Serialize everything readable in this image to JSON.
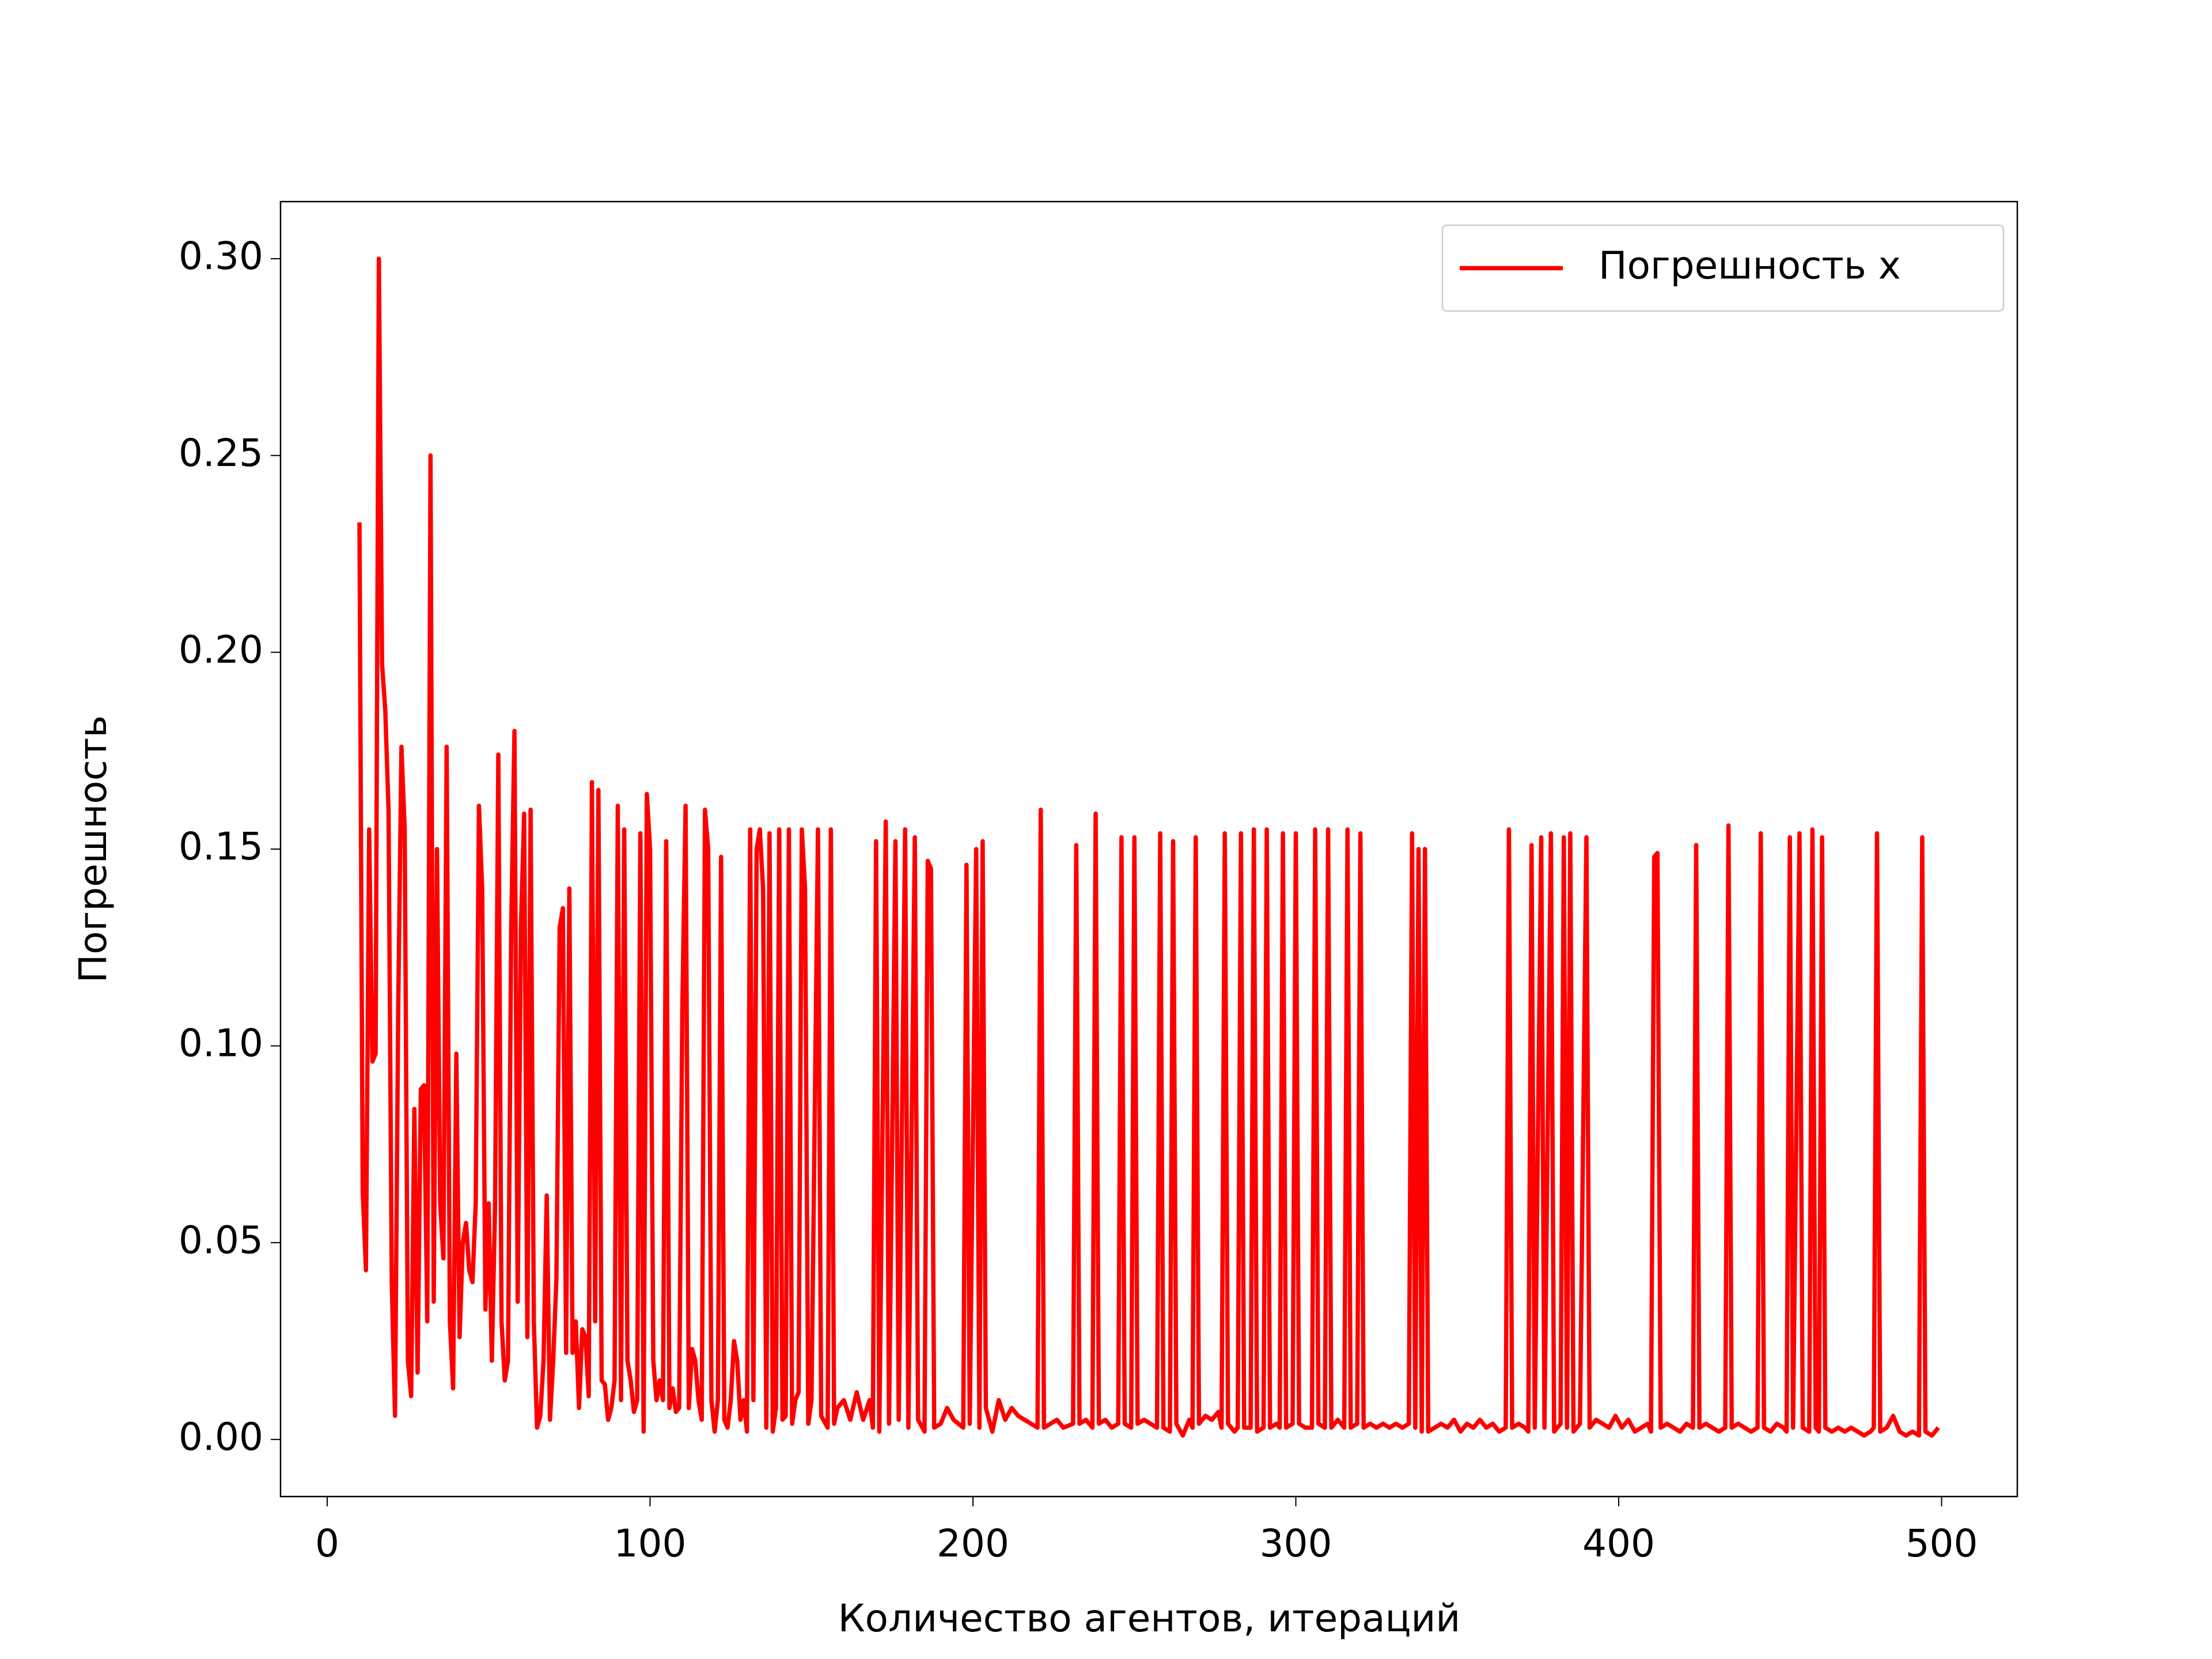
{
  "chart_data": {
    "type": "line",
    "xlabel": "Количество агентов, итераций",
    "ylabel": "Погрешность",
    "legend": "upper right",
    "xlim": [
      -14.45,
      523.45
    ],
    "ylim": [
      -0.0145,
      0.3145
    ],
    "xticks": [
      0,
      100,
      200,
      300,
      400,
      500
    ],
    "yticks": [
      {
        "value": 0,
        "label": "0.00"
      },
      {
        "value": 0.05,
        "label": "0.05"
      },
      {
        "value": 0.1,
        "label": "0.10"
      },
      {
        "value": 0.15,
        "label": "0.15"
      },
      {
        "value": 0.2,
        "label": "0.20"
      },
      {
        "value": 0.25,
        "label": "0.25"
      },
      {
        "value": 0.3,
        "label": "0.30"
      }
    ],
    "x": [
      10,
      11,
      12,
      13,
      14,
      15,
      16,
      17,
      18,
      19,
      20,
      21,
      22,
      23,
      24,
      25,
      26,
      27,
      28,
      29,
      30,
      31,
      32,
      33,
      34,
      35,
      36,
      37,
      38,
      39,
      40,
      41,
      42,
      43,
      44,
      45,
      46,
      47,
      48,
      49,
      50,
      51,
      52,
      53,
      54,
      55,
      56,
      57,
      58,
      59,
      60,
      61,
      62,
      63,
      64,
      65,
      66,
      67,
      68,
      69,
      70,
      71,
      72,
      73,
      74,
      75,
      76,
      77,
      78,
      79,
      80,
      81,
      82,
      83,
      84,
      85,
      86,
      87,
      88,
      89,
      90,
      91,
      92,
      93,
      94,
      95,
      96,
      97,
      98,
      99,
      100,
      101,
      102,
      103,
      104,
      105,
      106,
      107,
      108,
      109,
      110,
      111,
      112,
      113,
      114,
      115,
      116,
      117,
      118,
      119,
      120,
      121,
      122,
      123,
      124,
      125,
      126,
      127,
      128,
      129,
      130,
      131,
      132,
      133,
      134,
      135,
      136,
      137,
      138,
      139,
      140,
      141,
      142,
      143,
      144,
      145,
      146,
      147,
      148,
      149,
      150,
      152,
      153,
      155,
      156,
      157,
      158,
      160,
      162,
      164,
      166,
      168,
      169,
      170,
      171,
      173,
      174,
      176,
      177,
      179,
      180,
      182,
      183,
      185,
      186,
      187,
      188,
      190,
      192,
      194,
      197,
      198,
      199,
      201,
      202,
      203,
      204,
      206,
      208,
      210,
      212,
      214,
      216,
      218,
      220,
      221,
      222,
      224,
      226,
      228,
      231,
      232,
      233,
      235,
      237,
      238,
      239,
      241,
      243,
      245,
      246,
      247,
      249,
      250,
      251,
      253,
      255,
      257,
      258,
      259,
      261,
      262,
      263,
      265,
      267,
      268,
      269,
      270,
      272,
      274,
      276,
      277,
      278,
      279,
      281,
      282,
      283,
      284,
      286,
      287,
      288,
      290,
      291,
      292,
      294,
      295,
      296,
      297,
      299,
      300,
      301,
      303,
      305,
      306,
      307,
      309,
      310,
      311,
      313,
      315,
      316,
      317,
      319,
      320,
      321,
      323,
      325,
      327,
      329,
      331,
      333,
      335,
      336,
      337,
      338,
      339,
      340,
      341,
      343,
      345,
      347,
      349,
      351,
      353,
      355,
      357,
      359,
      361,
      363,
      365,
      366,
      367,
      369,
      371,
      372,
      373,
      374,
      376,
      377,
      379,
      380,
      382,
      383,
      384,
      385,
      386,
      388,
      390,
      391,
      393,
      395,
      397,
      399,
      401,
      403,
      405,
      407,
      409,
      410,
      411,
      412,
      413,
      415,
      417,
      419,
      421,
      423,
      424,
      425,
      427,
      429,
      431,
      433,
      434,
      435,
      437,
      439,
      441,
      443,
      444,
      445,
      447,
      449,
      451,
      452,
      453,
      454,
      456,
      457,
      459,
      460,
      461,
      462,
      463,
      464,
      466,
      468,
      470,
      472,
      474,
      476,
      478,
      479,
      480,
      481,
      483,
      485,
      487,
      489,
      491,
      493,
      494,
      495,
      497,
      499
    ],
    "series": [
      {
        "name": "Погрешность x",
        "color": "#ff0000",
        "values": [
          0.233,
          0.063,
          0.043,
          0.155,
          0.096,
          0.098,
          0.3,
          0.197,
          0.185,
          0.16,
          0.04,
          0.006,
          0.11,
          0.176,
          0.155,
          0.02,
          0.011,
          0.084,
          0.017,
          0.089,
          0.09,
          0.03,
          0.25,
          0.035,
          0.15,
          0.06,
          0.046,
          0.176,
          0.03,
          0.013,
          0.098,
          0.026,
          0.05,
          0.055,
          0.043,
          0.04,
          0.06,
          0.161,
          0.14,
          0.033,
          0.06,
          0.02,
          0.06,
          0.174,
          0.03,
          0.015,
          0.02,
          0.13,
          0.18,
          0.035,
          0.13,
          0.159,
          0.026,
          0.16,
          0.03,
          0.003,
          0.006,
          0.02,
          0.062,
          0.005,
          0.02,
          0.041,
          0.13,
          0.135,
          0.022,
          0.14,
          0.022,
          0.03,
          0.008,
          0.028,
          0.026,
          0.011,
          0.167,
          0.03,
          0.165,
          0.015,
          0.014,
          0.005,
          0.008,
          0.015,
          0.161,
          0.01,
          0.155,
          0.02,
          0.015,
          0.007,
          0.01,
          0.154,
          0.002,
          0.164,
          0.15,
          0.02,
          0.01,
          0.015,
          0.01,
          0.152,
          0.008,
          0.013,
          0.007,
          0.008,
          0.11,
          0.161,
          0.008,
          0.023,
          0.02,
          0.01,
          0.005,
          0.16,
          0.15,
          0.01,
          0.002,
          0.01,
          0.148,
          0.005,
          0.003,
          0.01,
          0.025,
          0.02,
          0.005,
          0.01,
          0.002,
          0.155,
          0.01,
          0.15,
          0.155,
          0.14,
          0.003,
          0.154,
          0.002,
          0.008,
          0.155,
          0.005,
          0.006,
          0.155,
          0.004,
          0.01,
          0.012,
          0.155,
          0.14,
          0.004,
          0.01,
          0.155,
          0.006,
          0.003,
          0.155,
          0.004,
          0.008,
          0.01,
          0.005,
          0.012,
          0.005,
          0.01,
          0.003,
          0.152,
          0.002,
          0.157,
          0.004,
          0.152,
          0.005,
          0.155,
          0.003,
          0.153,
          0.005,
          0.002,
          0.147,
          0.145,
          0.003,
          0.004,
          0.008,
          0.005,
          0.003,
          0.146,
          0.004,
          0.15,
          0.003,
          0.152,
          0.008,
          0.002,
          0.01,
          0.005,
          0.008,
          0.006,
          0.005,
          0.004,
          0.003,
          0.16,
          0.003,
          0.004,
          0.005,
          0.003,
          0.004,
          0.151,
          0.004,
          0.005,
          0.003,
          0.159,
          0.004,
          0.005,
          0.003,
          0.004,
          0.153,
          0.004,
          0.003,
          0.153,
          0.004,
          0.005,
          0.004,
          0.003,
          0.154,
          0.003,
          0.002,
          0.152,
          0.004,
          0.001,
          0.005,
          0.003,
          0.153,
          0.004,
          0.006,
          0.005,
          0.007,
          0.003,
          0.154,
          0.004,
          0.002,
          0.003,
          0.154,
          0.003,
          0.003,
          0.155,
          0.002,
          0.003,
          0.155,
          0.003,
          0.004,
          0.003,
          0.154,
          0.003,
          0.004,
          0.154,
          0.004,
          0.003,
          0.003,
          0.155,
          0.004,
          0.003,
          0.155,
          0.003,
          0.005,
          0.003,
          0.155,
          0.003,
          0.004,
          0.154,
          0.003,
          0.004,
          0.003,
          0.004,
          0.003,
          0.004,
          0.003,
          0.004,
          0.154,
          0.003,
          0.15,
          0.002,
          0.15,
          0.002,
          0.003,
          0.004,
          0.003,
          0.005,
          0.002,
          0.004,
          0.003,
          0.005,
          0.003,
          0.004,
          0.002,
          0.003,
          0.155,
          0.003,
          0.004,
          0.003,
          0.002,
          0.151,
          0.003,
          0.153,
          0.003,
          0.154,
          0.002,
          0.004,
          0.153,
          0.003,
          0.154,
          0.002,
          0.004,
          0.153,
          0.003,
          0.005,
          0.004,
          0.003,
          0.006,
          0.003,
          0.005,
          0.002,
          0.003,
          0.004,
          0.002,
          0.148,
          0.149,
          0.003,
          0.004,
          0.003,
          0.002,
          0.004,
          0.003,
          0.151,
          0.003,
          0.004,
          0.003,
          0.002,
          0.003,
          0.156,
          0.003,
          0.004,
          0.003,
          0.002,
          0.003,
          0.154,
          0.003,
          0.002,
          0.004,
          0.003,
          0.002,
          0.153,
          0.003,
          0.154,
          0.003,
          0.002,
          0.155,
          0.003,
          0.002,
          0.153,
          0.003,
          0.002,
          0.003,
          0.002,
          0.003,
          0.002,
          0.001,
          0.002,
          0.003,
          0.154,
          0.002,
          0.003,
          0.006,
          0.002,
          0.001,
          0.002,
          0.001,
          0.153,
          0.002,
          0.001,
          0.003
        ]
      }
    ]
  }
}
